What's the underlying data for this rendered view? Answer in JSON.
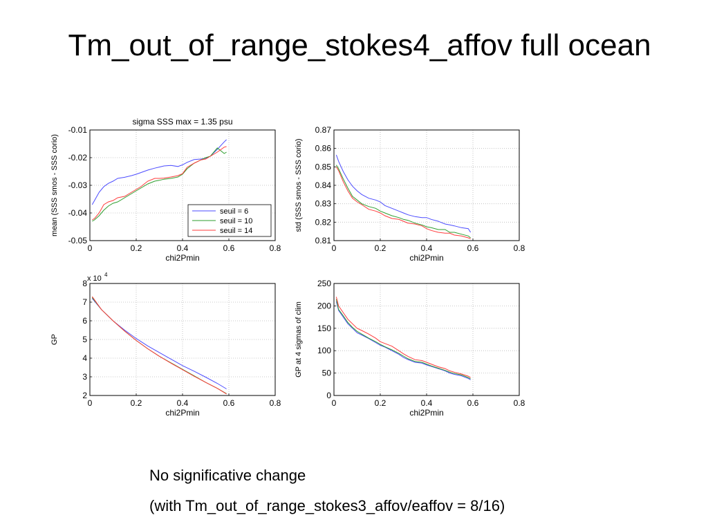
{
  "slide": {
    "title": "Tm_out_of_range_stokes4_affov full ocean",
    "note_line1": "No significative change",
    "note_line2": "(with Tm_out_of_range_stokes3_affov/eaffov = 8/16)"
  },
  "colors": {
    "seuil6": "#4b4bff",
    "seuil10": "#2e9e2e",
    "seuil14": "#ff3b3b"
  },
  "chart_data": [
    {
      "type": "line",
      "title": "sigma SSS max = 1.35 psu",
      "xlabel": "chi2Pmin",
      "ylabel": "mean (SSS smos - SSS corio)",
      "xlim": [
        0,
        0.8
      ],
      "ylim": [
        -0.05,
        -0.01
      ],
      "xticks": [
        "0",
        "0.2",
        "0.4",
        "0.6",
        "0.8"
      ],
      "yticks": [
        "-0.05",
        "-0.04",
        "-0.03",
        "-0.02",
        "-0.01"
      ],
      "grid": true,
      "legend": "bottom-right",
      "x": [
        0.01,
        0.02,
        0.04,
        0.06,
        0.08,
        0.1,
        0.12,
        0.15,
        0.18,
        0.2,
        0.22,
        0.25,
        0.28,
        0.3,
        0.32,
        0.35,
        0.38,
        0.4,
        0.42,
        0.45,
        0.48,
        0.5,
        0.52,
        0.55,
        0.58,
        0.59
      ],
      "series": [
        {
          "name": "seuil = 6",
          "color": "#4b4bff",
          "values": [
            -0.037,
            -0.0355,
            -0.0325,
            -0.0305,
            -0.0293,
            -0.0285,
            -0.0275,
            -0.0271,
            -0.0265,
            -0.026,
            -0.0254,
            -0.0245,
            -0.0238,
            -0.0234,
            -0.023,
            -0.0228,
            -0.0232,
            -0.0226,
            -0.0217,
            -0.0207,
            -0.0205,
            -0.0202,
            -0.0195,
            -0.017,
            -0.0143,
            -0.0135
          ]
        },
        {
          "name": "seuil = 10",
          "color": "#2e9e2e",
          "values": [
            -0.043,
            -0.0425,
            -0.041,
            -0.039,
            -0.0375,
            -0.0365,
            -0.036,
            -0.0345,
            -0.033,
            -0.032,
            -0.031,
            -0.0295,
            -0.0285,
            -0.0282,
            -0.0278,
            -0.0275,
            -0.027,
            -0.026,
            -0.024,
            -0.022,
            -0.0208,
            -0.02,
            -0.0195,
            -0.0165,
            -0.0185,
            -0.018
          ]
        },
        {
          "name": "seuil = 14",
          "color": "#ff3b3b",
          "values": [
            -0.0425,
            -0.042,
            -0.04,
            -0.037,
            -0.036,
            -0.0355,
            -0.0345,
            -0.034,
            -0.0325,
            -0.0315,
            -0.0305,
            -0.0285,
            -0.0275,
            -0.0275,
            -0.0274,
            -0.027,
            -0.0265,
            -0.0258,
            -0.0235,
            -0.022,
            -0.0208,
            -0.0205,
            -0.0195,
            -0.018,
            -0.0162,
            -0.016
          ]
        }
      ]
    },
    {
      "type": "line",
      "title": "",
      "xlabel": "chi2Pmin",
      "ylabel": "std (SSS smos - SSS corio)",
      "xlim": [
        0,
        0.8
      ],
      "ylim": [
        0.81,
        0.87
      ],
      "xticks": [
        "0",
        "0.2",
        "0.4",
        "0.6",
        "0.8"
      ],
      "yticks": [
        "0.81",
        "0.82",
        "0.83",
        "0.84",
        "0.85",
        "0.86",
        "0.87"
      ],
      "grid": true,
      "x": [
        0.01,
        0.02,
        0.04,
        0.06,
        0.08,
        0.1,
        0.12,
        0.15,
        0.18,
        0.2,
        0.22,
        0.25,
        0.28,
        0.3,
        0.32,
        0.35,
        0.38,
        0.4,
        0.42,
        0.45,
        0.48,
        0.5,
        0.52,
        0.55,
        0.58,
        0.59
      ],
      "series": [
        {
          "name": "seuil = 6",
          "color": "#4b4bff",
          "values": [
            0.8565,
            0.853,
            0.8475,
            0.843,
            0.8395,
            0.837,
            0.835,
            0.833,
            0.832,
            0.831,
            0.829,
            0.8275,
            0.826,
            0.825,
            0.824,
            0.823,
            0.8225,
            0.8225,
            0.8215,
            0.8205,
            0.819,
            0.8185,
            0.818,
            0.817,
            0.8165,
            0.8145
          ]
        },
        {
          "name": "seuil = 10",
          "color": "#2e9e2e",
          "values": [
            0.851,
            0.849,
            0.8435,
            0.8385,
            0.834,
            0.832,
            0.83,
            0.8285,
            0.8275,
            0.826,
            0.825,
            0.8235,
            0.8225,
            0.8215,
            0.821,
            0.8195,
            0.8185,
            0.8175,
            0.817,
            0.816,
            0.816,
            0.8145,
            0.8145,
            0.8135,
            0.8125,
            0.8115
          ]
        },
        {
          "name": "seuil = 14",
          "color": "#ff3b3b",
          "values": [
            0.85,
            0.848,
            0.842,
            0.837,
            0.833,
            0.831,
            0.8295,
            0.827,
            0.826,
            0.825,
            0.8235,
            0.822,
            0.8215,
            0.8205,
            0.8195,
            0.819,
            0.818,
            0.8165,
            0.8155,
            0.8145,
            0.814,
            0.814,
            0.813,
            0.8125,
            0.8115,
            0.811
          ]
        }
      ]
    },
    {
      "type": "line",
      "title": "",
      "xlabel": "chi2Pmin",
      "ylabel": "GP",
      "axis_multiplier": "x 10",
      "axis_multiplier_exp": "4",
      "xlim": [
        0,
        0.8
      ],
      "ylim": [
        2,
        8
      ],
      "xticks": [
        "0",
        "0.2",
        "0.4",
        "0.6",
        "0.8"
      ],
      "yticks": [
        "2",
        "3",
        "4",
        "5",
        "6",
        "7",
        "8"
      ],
      "grid": true,
      "x": [
        0.01,
        0.05,
        0.1,
        0.15,
        0.2,
        0.25,
        0.3,
        0.35,
        0.4,
        0.45,
        0.5,
        0.55,
        0.59
      ],
      "series": [
        {
          "name": "seuil = 6",
          "color": "#4b4bff",
          "values": [
            7.2,
            6.6,
            6.0,
            5.5,
            5.05,
            4.65,
            4.3,
            3.95,
            3.6,
            3.3,
            2.98,
            2.65,
            2.35
          ]
        },
        {
          "name": "seuil = 10",
          "color": "#2e9e2e",
          "values": [
            7.25,
            6.6,
            6.0,
            5.45,
            4.95,
            4.5,
            4.1,
            3.75,
            3.4,
            3.05,
            2.7,
            2.38,
            2.1
          ]
        },
        {
          "name": "seuil = 14",
          "color": "#ff3b3b",
          "values": [
            7.3,
            6.6,
            6.0,
            5.45,
            4.95,
            4.5,
            4.1,
            3.73,
            3.38,
            3.03,
            2.7,
            2.38,
            2.08
          ]
        }
      ]
    },
    {
      "type": "line",
      "title": "",
      "xlabel": "chi2Pmin",
      "ylabel": "GP at 4 sigmas of clim",
      "xlim": [
        0,
        0.8
      ],
      "ylim": [
        0,
        250
      ],
      "xticks": [
        "0",
        "0.2",
        "0.4",
        "0.6",
        "0.8"
      ],
      "yticks": [
        "0",
        "50",
        "100",
        "150",
        "200",
        "250"
      ],
      "grid": true,
      "x": [
        0.01,
        0.02,
        0.04,
        0.06,
        0.08,
        0.1,
        0.12,
        0.15,
        0.18,
        0.2,
        0.22,
        0.25,
        0.28,
        0.3,
        0.32,
        0.35,
        0.38,
        0.4,
        0.42,
        0.45,
        0.48,
        0.5,
        0.52,
        0.55,
        0.58,
        0.59
      ],
      "series": [
        {
          "name": "seuil = 6",
          "color": "#4b4bff",
          "values": [
            210,
            190,
            175,
            160,
            150,
            140,
            135,
            127,
            118,
            112,
            108,
            100,
            92,
            85,
            80,
            74,
            72,
            68,
            65,
            60,
            55,
            50,
            47,
            44,
            38,
            35
          ]
        },
        {
          "name": "seuil = 10",
          "color": "#2e9e2e",
          "values": [
            215,
            192,
            178,
            163,
            152,
            143,
            137,
            128,
            120,
            114,
            109,
            102,
            94,
            88,
            82,
            76,
            74,
            70,
            66,
            61,
            56,
            52,
            49,
            46,
            40,
            37
          ]
        },
        {
          "name": "seuil = 14",
          "color": "#ff3b3b",
          "values": [
            220,
            200,
            185,
            170,
            160,
            150,
            145,
            137,
            128,
            120,
            116,
            110,
            100,
            93,
            87,
            80,
            78,
            74,
            70,
            64,
            60,
            55,
            52,
            48,
            43,
            40
          ]
        }
      ]
    }
  ]
}
